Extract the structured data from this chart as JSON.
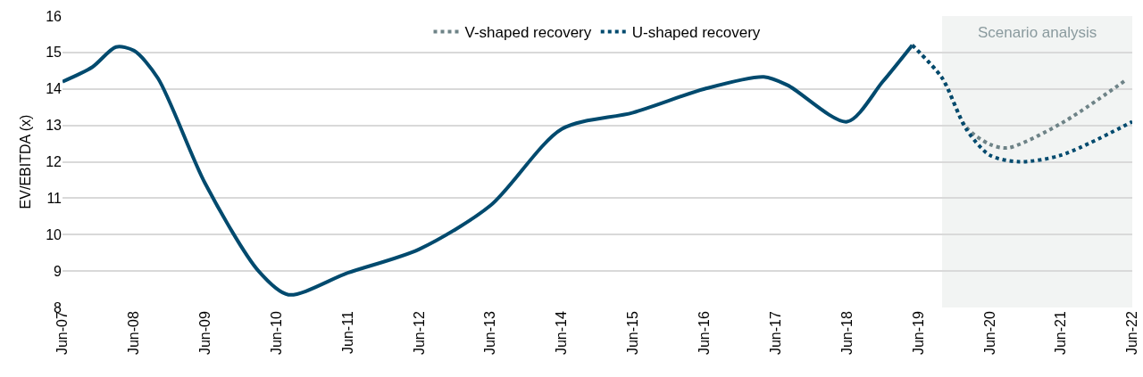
{
  "chart_data": {
    "type": "line",
    "ylabel": "EV/EBITDA (x)",
    "xlim": [
      "2007-06",
      "2022-06"
    ],
    "xticks": [
      {
        "value": "2007-06",
        "label": "Jun-07"
      },
      {
        "value": "2008-06",
        "label": "Jun-08"
      },
      {
        "value": "2009-06",
        "label": "Jun-09"
      },
      {
        "value": "2010-06",
        "label": "Jun-10"
      },
      {
        "value": "2011-06",
        "label": "Jun-11"
      },
      {
        "value": "2012-06",
        "label": "Jun-12"
      },
      {
        "value": "2013-06",
        "label": "Jun-13"
      },
      {
        "value": "2014-06",
        "label": "Jun-14"
      },
      {
        "value": "2015-06",
        "label": "Jun-15"
      },
      {
        "value": "2016-06",
        "label": "Jun-16"
      },
      {
        "value": "2017-06",
        "label": "Jun-17"
      },
      {
        "value": "2018-06",
        "label": "Jun-18"
      },
      {
        "value": "2019-06",
        "label": "Jun-19"
      },
      {
        "value": "2020-06",
        "label": "Jun-20"
      },
      {
        "value": "2021-06",
        "label": "Jun-21"
      },
      {
        "value": "2022-06",
        "label": "Jun-22"
      }
    ],
    "ylim": [
      8,
      16
    ],
    "yticks": [
      8,
      9,
      10,
      11,
      12,
      13,
      14,
      15,
      16
    ],
    "grid": "y",
    "legend": "top",
    "bands": [
      {
        "axis": "x",
        "from": "2019-10",
        "to": "2022-06",
        "label": "Scenario analysis",
        "color": "#f2f4f3"
      }
    ],
    "series": [
      {
        "color": "#004a6e",
        "line_style": "solid",
        "x": [
          "2007-06",
          "2007-11",
          "2008-03",
          "2008-06",
          "2008-10",
          "2009-06",
          "2010-03",
          "2010-08",
          "2011-06",
          "2012-06",
          "2013-06",
          "2014-06",
          "2015-06",
          "2016-06",
          "2017-04",
          "2017-08",
          "2018-06",
          "2018-12",
          "2019-05"
        ],
        "values": [
          14.2,
          14.6,
          15.15,
          15.05,
          14.3,
          11.4,
          9.0,
          8.35,
          8.95,
          9.6,
          10.8,
          12.9,
          13.35,
          14.0,
          14.33,
          14.1,
          13.1,
          14.2,
          15.2
        ]
      },
      {
        "name": "V-shaped recovery",
        "color": "#6e8387",
        "line_style": "dotted",
        "x": [
          "2019-05",
          "2019-10",
          "2020-02",
          "2020-06",
          "2020-09",
          "2021-06",
          "2022-05"
        ],
        "values": [
          15.2,
          14.3,
          12.95,
          12.48,
          12.38,
          13.05,
          14.25
        ]
      },
      {
        "name": "U-shaped recovery",
        "color": "#004a6e",
        "line_style": "dotted",
        "x": [
          "2019-05",
          "2019-10",
          "2020-02",
          "2020-06",
          "2020-11",
          "2021-06",
          "2022-06"
        ],
        "values": [
          15.2,
          14.3,
          12.9,
          12.18,
          12.0,
          12.18,
          13.1
        ]
      }
    ]
  }
}
